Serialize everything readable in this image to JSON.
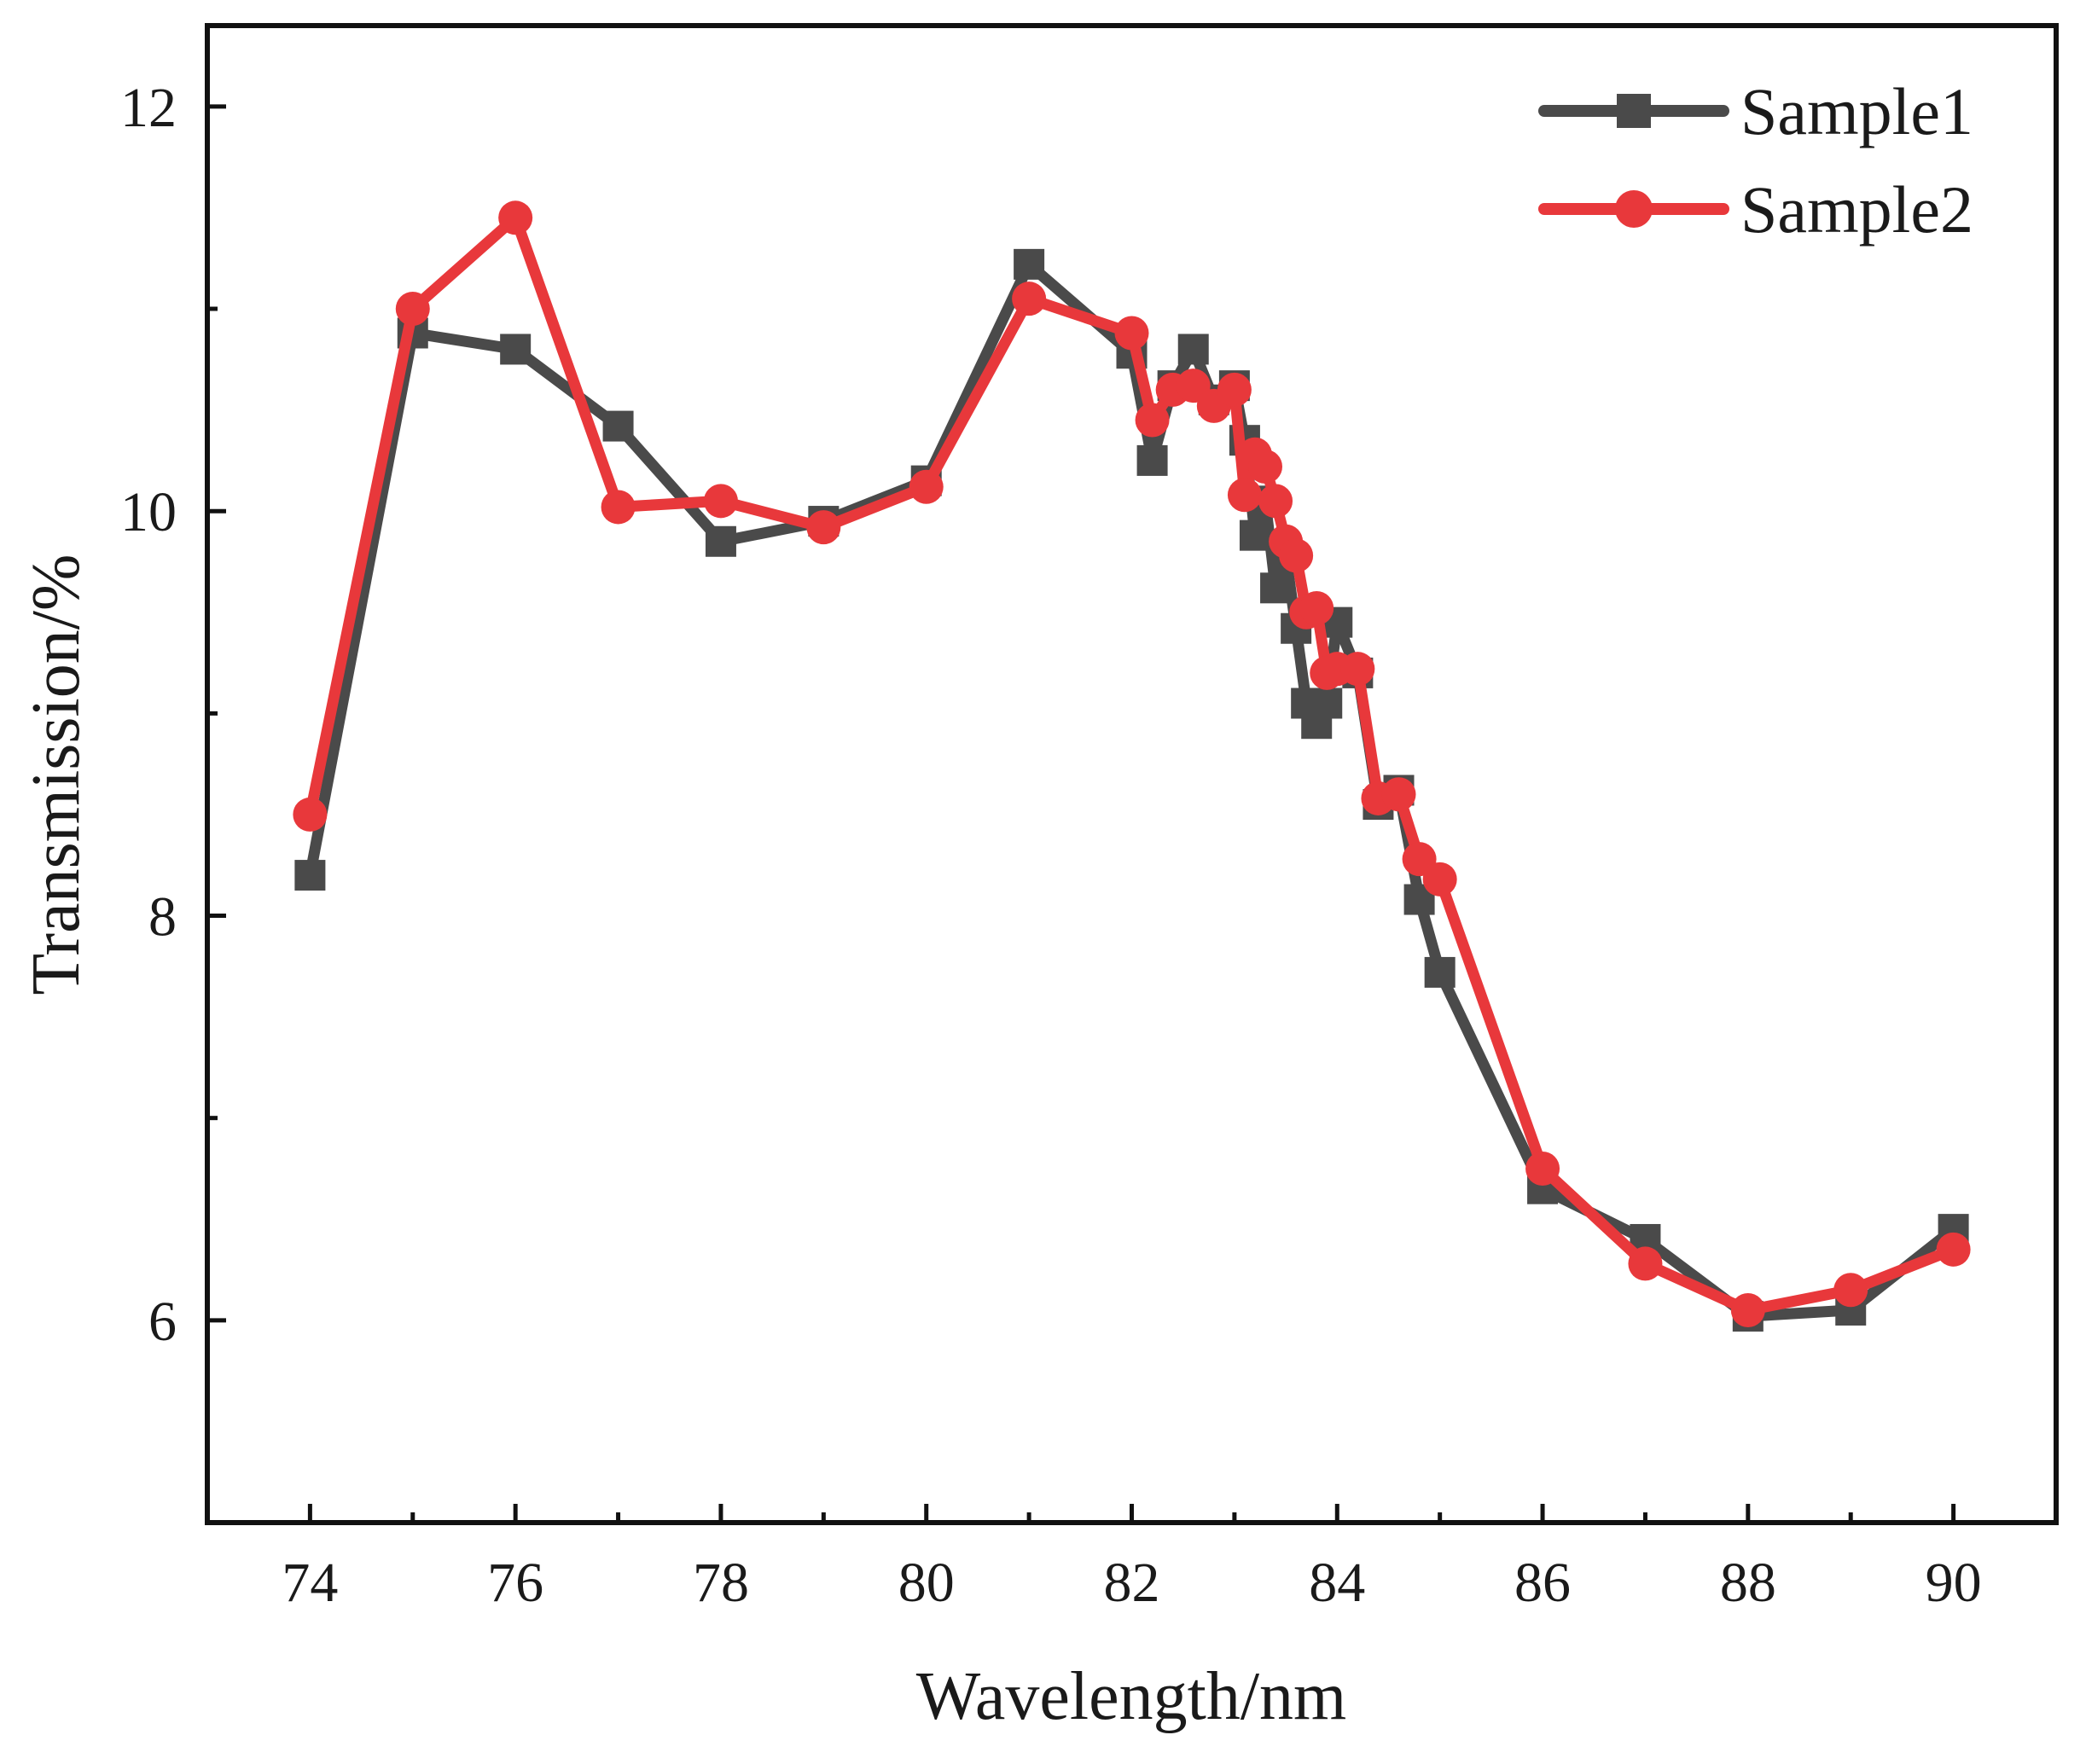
{
  "chart_data": {
    "type": "line",
    "title": "",
    "xlabel": "Wavelength/nm",
    "ylabel": "Transmission/%",
    "xlim": [
      73,
      91
    ],
    "ylim": [
      5,
      12.4
    ],
    "xticks": [
      74,
      76,
      78,
      80,
      82,
      84,
      86,
      88,
      90
    ],
    "yticks": [
      6,
      8,
      10,
      12
    ],
    "grid": false,
    "legend_position": "top-right",
    "series": [
      {
        "name": "Sample1",
        "color": "#4a4a4a",
        "marker": "square",
        "x": [
          74,
          75,
          76,
          77,
          78,
          79,
          80,
          81,
          82,
          82.2,
          82.4,
          82.6,
          82.8,
          83,
          83.1,
          83.2,
          83.3,
          83.4,
          83.5,
          83.6,
          83.7,
          83.8,
          83.9,
          84,
          84.2,
          84.4,
          84.6,
          84.8,
          85,
          86,
          87,
          88,
          89,
          90
        ],
        "y": [
          8.2,
          10.88,
          10.8,
          10.42,
          9.85,
          9.95,
          10.15,
          11.22,
          10.78,
          10.25,
          10.62,
          10.8,
          10.55,
          10.62,
          10.35,
          9.88,
          10.05,
          9.62,
          9.78,
          9.42,
          9.05,
          8.95,
          9.05,
          9.45,
          9.2,
          8.55,
          8.62,
          8.08,
          7.72,
          6.65,
          6.4,
          6.02,
          6.05,
          6.45
        ]
      },
      {
        "name": "Sample2",
        "color": "#e8383b",
        "marker": "circle",
        "x": [
          74,
          75,
          76,
          77,
          78,
          79,
          80,
          81,
          82,
          82.2,
          82.4,
          82.6,
          82.8,
          83,
          83.1,
          83.2,
          83.3,
          83.4,
          83.5,
          83.6,
          83.7,
          83.8,
          83.9,
          84,
          84.2,
          84.4,
          84.6,
          84.8,
          85,
          86,
          87,
          88,
          89,
          90
        ],
        "y": [
          8.5,
          11.0,
          11.45,
          10.02,
          10.05,
          9.92,
          10.12,
          11.05,
          10.88,
          10.45,
          10.6,
          10.62,
          10.52,
          10.6,
          10.08,
          10.28,
          10.22,
          10.05,
          9.85,
          9.78,
          9.5,
          9.52,
          9.2,
          9.22,
          9.22,
          8.58,
          8.6,
          8.28,
          8.18,
          6.75,
          6.28,
          6.05,
          6.15,
          6.35
        ]
      }
    ]
  }
}
